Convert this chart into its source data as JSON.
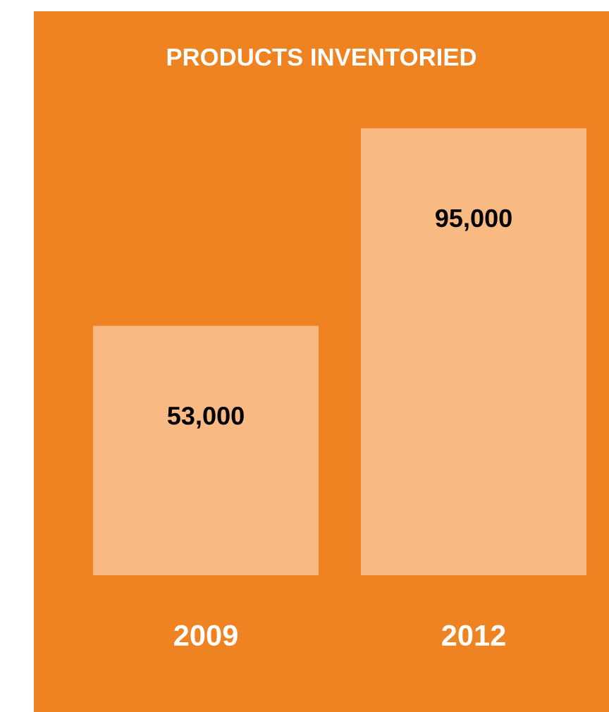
{
  "chart_data": {
    "type": "bar",
    "title": "PRODUCTS INVENTORIED",
    "categories": [
      "2009",
      "2012"
    ],
    "values": [
      53000,
      95000
    ],
    "color": "#f9b983",
    "value_labels": [
      "53,000",
      "95,000"
    ]
  }
}
